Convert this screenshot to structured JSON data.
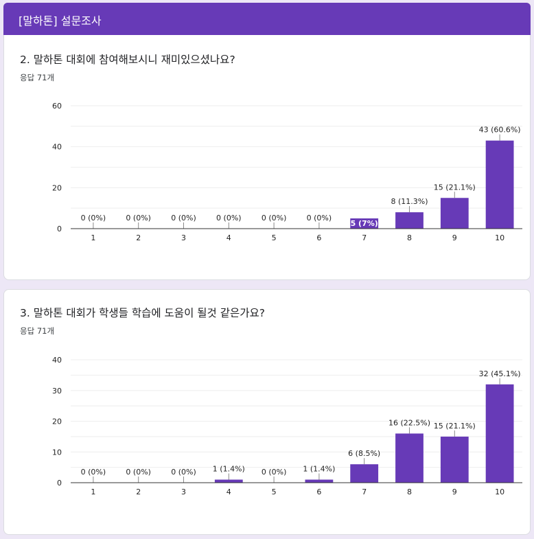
{
  "form": {
    "title": "[말하톤] 설문조사"
  },
  "questions": [
    {
      "title": "2. 말하톤 대회에 참여해보시니 재미있으셨나요?",
      "responses": "응답 71개"
    },
    {
      "title": "3. 말하톤 대회가 학생들 학습에 도움이 될것 같은가요?",
      "responses": "응답 71개"
    }
  ],
  "colors": {
    "bar": "#673ab7",
    "header": "#673ab7",
    "grid": "#eeeeee",
    "axis": "#333333"
  },
  "chart_data": [
    {
      "type": "bar",
      "title": "2. 말하톤 대회에 참여해보시니 재미있으셨나요?",
      "categories": [
        "1",
        "2",
        "3",
        "4",
        "5",
        "6",
        "7",
        "8",
        "9",
        "10"
      ],
      "values": [
        0,
        0,
        0,
        0,
        0,
        0,
        5,
        8,
        15,
        43
      ],
      "labels": [
        "0 (0%)",
        "0 (0%)",
        "0 (0%)",
        "0 (0%)",
        "0 (0%)",
        "0 (0%)",
        "5 (7%)",
        "8 (11.3%)",
        "15 (21.1%)",
        "43 (60.6%)"
      ],
      "yticks": [
        0,
        20,
        40,
        60
      ],
      "ylim": [
        0,
        60
      ],
      "xlabel": "",
      "ylabel": ""
    },
    {
      "type": "bar",
      "title": "3. 말하톤 대회가 학생들 학습에 도움이 될것 같은가요?",
      "categories": [
        "1",
        "2",
        "3",
        "4",
        "5",
        "6",
        "7",
        "8",
        "9",
        "10"
      ],
      "values": [
        0,
        0,
        0,
        1,
        0,
        1,
        6,
        16,
        15,
        32
      ],
      "labels": [
        "0 (0%)",
        "0 (0%)",
        "0 (0%)",
        "1 (1.4%)",
        "0 (0%)",
        "1 (1.4%)",
        "6 (8.5%)",
        "16 (22.5%)",
        "15 (21.1%)",
        "32 (45.1%)"
      ],
      "yticks": [
        0,
        10,
        20,
        30,
        40
      ],
      "ylim": [
        0,
        40
      ],
      "xlabel": "",
      "ylabel": ""
    }
  ]
}
